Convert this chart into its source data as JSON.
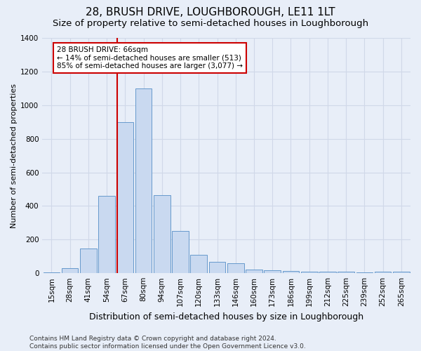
{
  "title": "28, BRUSH DRIVE, LOUGHBOROUGH, LE11 1LT",
  "subtitle": "Size of property relative to semi-detached houses in Loughborough",
  "xlabel": "Distribution of semi-detached houses by size in Loughborough",
  "ylabel": "Number of semi-detached properties",
  "footnote": "Contains HM Land Registry data © Crown copyright and database right 2024.\nContains public sector information licensed under the Open Government Licence v3.0.",
  "bar_labels": [
    "15sqm",
    "28sqm",
    "41sqm",
    "54sqm",
    "67sqm",
    "80sqm",
    "94sqm",
    "107sqm",
    "120sqm",
    "133sqm",
    "146sqm",
    "160sqm",
    "173sqm",
    "186sqm",
    "199sqm",
    "212sqm",
    "225sqm",
    "239sqm",
    "252sqm",
    "265sqm"
  ],
  "bar_values": [
    5,
    30,
    148,
    460,
    900,
    1100,
    465,
    250,
    108,
    68,
    58,
    20,
    18,
    12,
    8,
    10,
    8,
    5,
    10,
    8
  ],
  "bar_color": "#c9d9f0",
  "bar_edge_color": "#6699cc",
  "annotation_text": "28 BRUSH DRIVE: 66sqm\n← 14% of semi-detached houses are smaller (513)\n85% of semi-detached houses are larger (3,077) →",
  "vline_x_index": 4,
  "vline_color": "#cc0000",
  "annotation_box_color": "#ffffff",
  "annotation_box_edge": "#cc0000",
  "grid_color": "#d0d8e8",
  "background_color": "#e8eef8",
  "ylim": [
    0,
    1400
  ],
  "yticks": [
    0,
    200,
    400,
    600,
    800,
    1000,
    1200,
    1400
  ],
  "title_fontsize": 11,
  "subtitle_fontsize": 9.5,
  "xlabel_fontsize": 9,
  "ylabel_fontsize": 8,
  "tick_fontsize": 7.5,
  "annotation_fontsize": 7.5,
  "footnote_fontsize": 6.5
}
